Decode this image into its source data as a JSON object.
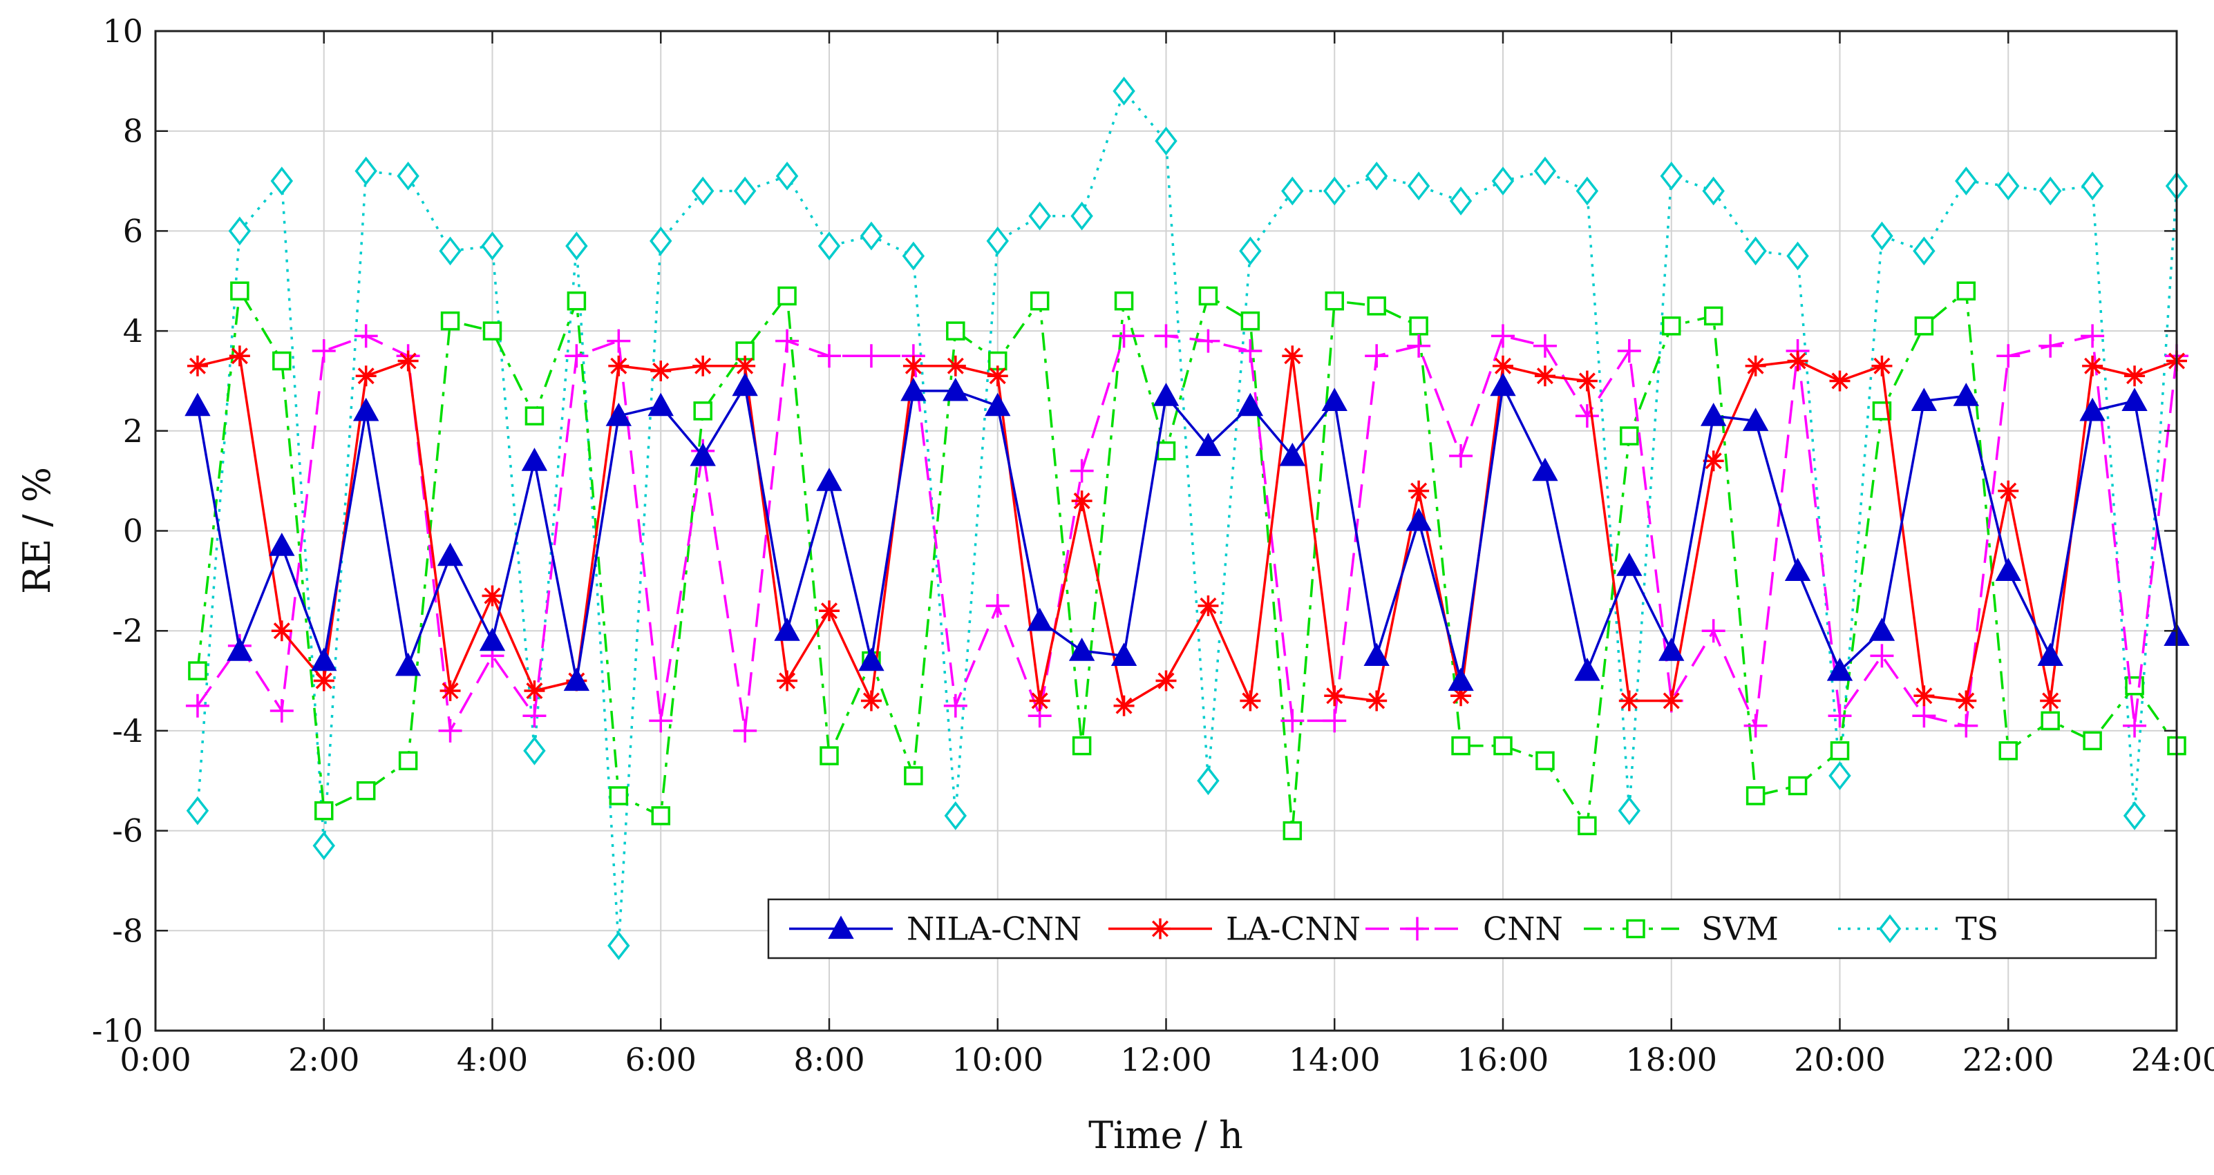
{
  "chart_data": {
    "type": "line",
    "title": "",
    "xlabel": "Time / h",
    "ylabel": "RE / %",
    "xlim": [
      0,
      24
    ],
    "ylim": [
      -10,
      10
    ],
    "grid": true,
    "legend_position": "bottom-right",
    "x_ticks": [
      0,
      2,
      4,
      6,
      8,
      10,
      12,
      14,
      16,
      18,
      20,
      22,
      24
    ],
    "x_tick_labels": [
      "0:00",
      "2:00",
      "4:00",
      "6:00",
      "8:00",
      "10:00",
      "12:00",
      "14:00",
      "16:00",
      "18:00",
      "20:00",
      "22:00",
      "24:00"
    ],
    "y_ticks": [
      -10,
      -8,
      -6,
      -4,
      -2,
      0,
      2,
      4,
      6,
      8,
      10
    ],
    "y_tick_labels": [
      "-10",
      "-8",
      "-6",
      "-4",
      "-2",
      "0",
      "2",
      "4",
      "6",
      "8",
      "10"
    ],
    "x": [
      0.5,
      1,
      1.5,
      2,
      2.5,
      3,
      3.5,
      4,
      4.5,
      5,
      5.5,
      6,
      6.5,
      7,
      7.5,
      8,
      8.5,
      9,
      9.5,
      10,
      10.5,
      11,
      11.5,
      12,
      12.5,
      13,
      13.5,
      14,
      14.5,
      15,
      15.5,
      16,
      16.5,
      17,
      17.5,
      18,
      18.5,
      19,
      19.5,
      20,
      20.5,
      21,
      21.5,
      22,
      22.5,
      23,
      23.5,
      24
    ],
    "series": [
      {
        "name": "NILA-CNN",
        "color": "#0000cc",
        "dash": "solid",
        "marker": "triangle",
        "values": [
          2.5,
          -2.4,
          -0.3,
          -2.6,
          2.4,
          -2.7,
          -0.5,
          -2.2,
          1.4,
          -3.0,
          2.3,
          2.5,
          1.5,
          2.9,
          -2.0,
          1.0,
          -2.6,
          2.8,
          2.8,
          2.5,
          -1.8,
          -2.4,
          -2.5,
          2.7,
          1.7,
          2.5,
          1.5,
          2.6,
          -2.5,
          0.2,
          -3.0,
          2.9,
          1.2,
          -2.8,
          -0.7,
          -2.4,
          2.3,
          2.2,
          -0.8,
          -2.8,
          -2.0,
          2.6,
          2.7,
          -0.8,
          -2.5,
          2.4,
          2.6,
          -2.1
        ]
      },
      {
        "name": "LA-CNN",
        "color": "#ff0000",
        "dash": "solid",
        "marker": "star",
        "values": [
          3.3,
          3.5,
          -2.0,
          -3.0,
          3.1,
          3.4,
          -3.2,
          -1.3,
          -3.2,
          -3.0,
          3.3,
          3.2,
          3.3,
          3.3,
          -3.0,
          -1.6,
          -3.4,
          3.3,
          3.3,
          3.1,
          -3.4,
          0.6,
          -3.5,
          -3.0,
          -1.5,
          -3.4,
          3.5,
          -3.3,
          -3.4,
          0.8,
          -3.3,
          3.3,
          3.1,
          3.0,
          -3.4,
          -3.4,
          1.4,
          3.3,
          3.4,
          3.0,
          3.3,
          -3.3,
          -3.4,
          0.8,
          -3.4,
          3.3,
          3.1,
          3.4
        ]
      },
      {
        "name": "CNN",
        "color": "#ff00ff",
        "dash": "longdash",
        "marker": "plus",
        "values": [
          -3.5,
          -2.3,
          -3.6,
          3.6,
          3.9,
          3.5,
          -4.0,
          -2.5,
          -3.7,
          3.5,
          3.8,
          -3.8,
          1.6,
          -4.0,
          3.8,
          3.5,
          3.5,
          3.5,
          -3.5,
          -1.5,
          -3.7,
          1.2,
          3.9,
          3.9,
          3.8,
          3.6,
          -3.8,
          -3.8,
          3.5,
          3.7,
          1.5,
          3.9,
          3.7,
          2.3,
          3.6,
          -3.4,
          -2.0,
          -3.9,
          3.6,
          -3.7,
          -2.5,
          -3.7,
          -3.9,
          3.5,
          3.7,
          3.9,
          -3.9,
          3.5
        ]
      },
      {
        "name": "SVM",
        "color": "#00dd00",
        "dash": "dashdot",
        "marker": "square",
        "values": [
          -2.8,
          4.8,
          3.4,
          -5.6,
          -5.2,
          -4.6,
          4.2,
          4.0,
          2.3,
          4.6,
          -5.3,
          -5.7,
          2.4,
          3.6,
          4.7,
          -4.5,
          -2.6,
          -4.9,
          4.0,
          3.4,
          4.6,
          -4.3,
          4.6,
          1.6,
          4.7,
          4.2,
          -6.0,
          4.6,
          4.5,
          4.1,
          -4.3,
          -4.3,
          -4.6,
          -5.9,
          1.9,
          4.1,
          4.3,
          -5.3,
          -5.1,
          -4.4,
          2.4,
          4.1,
          4.8,
          -4.4,
          -3.8,
          -4.2,
          -3.1,
          -4.3
        ]
      },
      {
        "name": "TS",
        "color": "#00cccc",
        "dash": "dotted",
        "marker": "diamond",
        "values": [
          -5.6,
          6.0,
          7.0,
          -6.3,
          7.2,
          7.1,
          5.6,
          5.7,
          -4.4,
          5.7,
          -8.3,
          5.8,
          6.8,
          6.8,
          7.1,
          5.7,
          5.9,
          5.5,
          -5.7,
          5.8,
          6.3,
          6.3,
          8.8,
          7.8,
          -5.0,
          5.6,
          6.8,
          6.8,
          7.1,
          6.9,
          6.6,
          7.0,
          7.2,
          6.8,
          -5.6,
          7.1,
          6.8,
          5.6,
          5.5,
          -4.9,
          5.9,
          5.6,
          7.0,
          6.9,
          6.8,
          6.9,
          -5.7,
          6.9
        ]
      }
    ]
  }
}
